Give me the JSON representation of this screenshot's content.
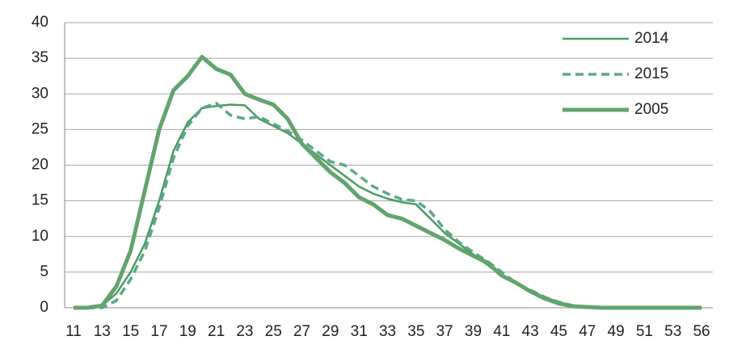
{
  "chart_data": {
    "type": "line",
    "categories": [
      11,
      null,
      13,
      null,
      15,
      null,
      17,
      null,
      19,
      null,
      21,
      null,
      23,
      null,
      25,
      null,
      27,
      null,
      29,
      null,
      31,
      null,
      33,
      null,
      35,
      null,
      37,
      null,
      39,
      null,
      41,
      null,
      43,
      null,
      45,
      null,
      47,
      null,
      49,
      null,
      51,
      null,
      53,
      null,
      56
    ],
    "series": [
      {
        "name": "2014",
        "color": "#4e9a62",
        "style": "solid",
        "width": 2.5,
        "values": [
          0,
          0,
          0.3,
          2,
          5,
          9,
          15,
          22,
          26,
          28,
          28.3,
          28.5,
          28.4,
          26.5,
          25.5,
          24.5,
          23,
          21.5,
          20,
          18.5,
          17,
          16,
          15.3,
          14.8,
          14.5,
          12.5,
          10.5,
          9,
          7.5,
          6,
          4.5,
          3.5,
          2.3,
          1.5,
          0.8,
          0.3,
          0.1,
          0,
          0,
          0,
          0,
          0,
          0,
          0,
          0
        ]
      },
      {
        "name": "2015",
        "color": "#5aa88a",
        "style": "dashed",
        "width": 3.5,
        "values": [
          0,
          0,
          0,
          1,
          4,
          8,
          14,
          21,
          25.5,
          28,
          28.7,
          27,
          26.5,
          26.8,
          25.8,
          24.8,
          23.5,
          22,
          20.5,
          20,
          18.5,
          17,
          16,
          15.2,
          15,
          13.5,
          11,
          9.2,
          7.8,
          6.5,
          5,
          3.5,
          2.5,
          1.5,
          0.8,
          0.3,
          0.1,
          0,
          0,
          0,
          0,
          0,
          0,
          0,
          0
        ]
      },
      {
        "name": "2005",
        "color": "#62a46c",
        "style": "solid",
        "width": 5,
        "values": [
          0,
          0,
          0.3,
          3,
          8,
          16.5,
          25,
          30.5,
          32.5,
          35.2,
          33.5,
          32.7,
          30,
          29.2,
          28.5,
          26.5,
          23,
          21,
          19,
          17.5,
          15.5,
          14.5,
          13,
          12.5,
          11.5,
          10.5,
          9.5,
          8.3,
          7.3,
          6.3,
          4.5,
          3.5,
          2.3,
          1.3,
          0.6,
          0.2,
          0.1,
          0,
          0,
          0,
          0,
          0,
          0,
          0,
          0
        ]
      }
    ],
    "ylim": [
      0,
      40
    ],
    "yticks": [
      0,
      5,
      10,
      15,
      20,
      25,
      30,
      35,
      40
    ],
    "grid": true,
    "legend": "top-right"
  }
}
